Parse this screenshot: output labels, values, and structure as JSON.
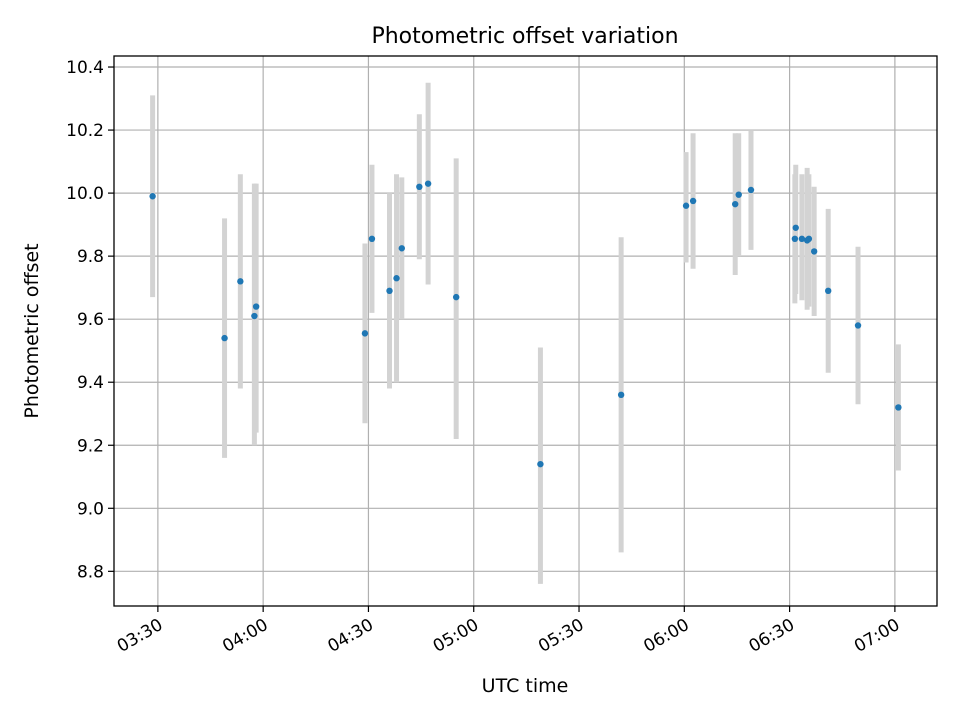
{
  "chart_data": {
    "type": "scatter",
    "title": "Photometric offset variation",
    "xlabel": "UTC time",
    "ylabel": "Photometric offset",
    "x_tick_labels": [
      "03:30",
      "04:00",
      "04:30",
      "05:00",
      "05:30",
      "06:00",
      "06:30",
      "07:00"
    ],
    "y_tick_labels": [
      "8.8",
      "9.0",
      "9.2",
      "9.4",
      "9.6",
      "9.8",
      "10.0",
      "10.2",
      "10.4"
    ],
    "xlim": [
      "03:17:30",
      "07:12:00"
    ],
    "ylim": [
      8.69,
      10.435
    ],
    "grid": true,
    "colors": {
      "point": "#1f77b4",
      "errorbar": "#d3d3d3",
      "grid": "#b0b0b0"
    },
    "points": [
      {
        "time": "03:28:30",
        "y": 9.99,
        "yerr_low": 9.67,
        "yerr_high": 10.31
      },
      {
        "time": "03:49:00",
        "y": 9.54,
        "yerr_low": 9.16,
        "yerr_high": 9.92
      },
      {
        "time": "03:53:30",
        "y": 9.72,
        "yerr_low": 9.38,
        "yerr_high": 10.06
      },
      {
        "time": "03:57:30",
        "y": 9.61,
        "yerr_low": 9.2,
        "yerr_high": 10.03
      },
      {
        "time": "03:58:00",
        "y": 9.64,
        "yerr_low": 9.24,
        "yerr_high": 10.03
      },
      {
        "time": "04:29:00",
        "y": 9.555,
        "yerr_low": 9.27,
        "yerr_high": 9.84
      },
      {
        "time": "04:31:00",
        "y": 9.855,
        "yerr_low": 9.62,
        "yerr_high": 10.09
      },
      {
        "time": "04:36:00",
        "y": 9.69,
        "yerr_low": 9.38,
        "yerr_high": 10.0
      },
      {
        "time": "04:38:00",
        "y": 9.73,
        "yerr_low": 9.4,
        "yerr_high": 10.06
      },
      {
        "time": "04:39:30",
        "y": 9.825,
        "yerr_low": 9.6,
        "yerr_high": 10.05
      },
      {
        "time": "04:44:30",
        "y": 10.02,
        "yerr_low": 9.79,
        "yerr_high": 10.25
      },
      {
        "time": "04:47:00",
        "y": 10.03,
        "yerr_low": 9.71,
        "yerr_high": 10.35
      },
      {
        "time": "04:55:00",
        "y": 9.67,
        "yerr_low": 9.22,
        "yerr_high": 10.11
      },
      {
        "time": "05:19:00",
        "y": 9.14,
        "yerr_low": 8.76,
        "yerr_high": 9.51
      },
      {
        "time": "05:42:00",
        "y": 9.36,
        "yerr_low": 8.86,
        "yerr_high": 9.86
      },
      {
        "time": "06:00:30",
        "y": 9.96,
        "yerr_low": 9.78,
        "yerr_high": 10.13
      },
      {
        "time": "06:02:30",
        "y": 9.975,
        "yerr_low": 9.76,
        "yerr_high": 10.19
      },
      {
        "time": "06:14:30",
        "y": 9.965,
        "yerr_low": 9.74,
        "yerr_high": 10.19
      },
      {
        "time": "06:15:30",
        "y": 9.995,
        "yerr_low": 9.8,
        "yerr_high": 10.19
      },
      {
        "time": "06:19:00",
        "y": 10.01,
        "yerr_low": 9.82,
        "yerr_high": 10.2
      },
      {
        "time": "06:31:30",
        "y": 9.855,
        "yerr_low": 9.65,
        "yerr_high": 10.06
      },
      {
        "time": "06:31:45",
        "y": 9.89,
        "yerr_low": 9.68,
        "yerr_high": 10.09
      },
      {
        "time": "06:33:30",
        "y": 9.855,
        "yerr_low": 9.66,
        "yerr_high": 10.06
      },
      {
        "time": "06:35:00",
        "y": 9.85,
        "yerr_low": 9.63,
        "yerr_high": 10.08
      },
      {
        "time": "06:35:30",
        "y": 9.855,
        "yerr_low": 9.64,
        "yerr_high": 10.06
      },
      {
        "time": "06:37:00",
        "y": 9.815,
        "yerr_low": 9.61,
        "yerr_high": 10.02
      },
      {
        "time": "06:41:00",
        "y": 9.69,
        "yerr_low": 9.43,
        "yerr_high": 9.95
      },
      {
        "time": "06:49:30",
        "y": 9.58,
        "yerr_low": 9.33,
        "yerr_high": 9.83
      },
      {
        "time": "07:01:00",
        "y": 9.32,
        "yerr_low": 9.12,
        "yerr_high": 9.52
      }
    ]
  }
}
